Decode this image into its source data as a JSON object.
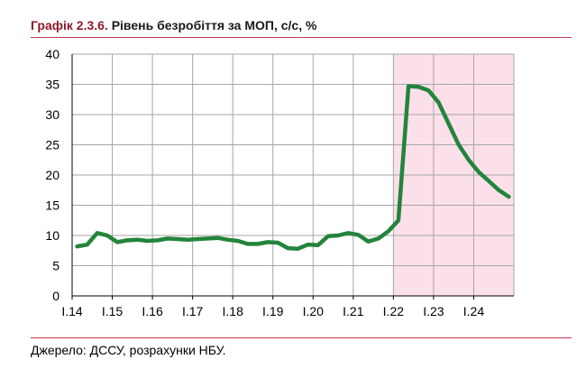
{
  "title": {
    "lead": "Графік 2.3.6.",
    "rest": "Рівень безробіття за МОП, с/с, %"
  },
  "source": "Джерело: ДССУ, розрахунки НБУ.",
  "colors": {
    "line": "#23843b",
    "shade": "#fbe0ea",
    "title_accent": "#8b1a2b",
    "rule": "#c0384f",
    "grid": "#a6a6a6"
  },
  "chart_data": {
    "type": "line",
    "title": "Рівень безробіття за МОП, с/с, %",
    "categories": [
      "I.14",
      "I.15",
      "I.16",
      "I.17",
      "I.18",
      "I.19",
      "I.20",
      "I.21",
      "I.22",
      "I.23",
      "I.24"
    ],
    "y_ticks": [
      0,
      5,
      10,
      15,
      20,
      25,
      30,
      35,
      40
    ],
    "ylim": [
      0,
      40
    ],
    "grid": true,
    "shaded_from": "I.22",
    "series": [
      {
        "x": [
          "I.14",
          "II.14",
          "III.14",
          "IV.14",
          "I.15",
          "II.15",
          "III.15",
          "IV.15",
          "I.16",
          "II.16",
          "III.16",
          "IV.16",
          "I.17",
          "II.17",
          "III.17",
          "IV.17",
          "I.18",
          "II.18",
          "III.18",
          "IV.18",
          "I.19",
          "II.19",
          "III.19",
          "IV.19",
          "I.20",
          "II.20",
          "III.20",
          "IV.20",
          "I.21",
          "II.21",
          "III.21",
          "IV.21",
          "I.22",
          "II.22",
          "III.22",
          "IV.22",
          "I.23",
          "II.23",
          "III.23",
          "IV.23",
          "I.24",
          "II.24",
          "III.24",
          "IV.24"
        ],
        "values": [
          8.2,
          8.5,
          10.4,
          10.0,
          8.9,
          9.2,
          9.3,
          9.1,
          9.2,
          9.5,
          9.4,
          9.3,
          9.4,
          9.5,
          9.6,
          9.3,
          9.1,
          8.6,
          8.6,
          8.9,
          8.8,
          7.9,
          7.8,
          8.5,
          8.4,
          9.9,
          10.0,
          10.4,
          10.1,
          9.0,
          9.5,
          10.7,
          12.5,
          34.7,
          34.6,
          34.0,
          32.0,
          28.5,
          25.0,
          22.5,
          20.5,
          19.0,
          17.5,
          16.4
        ]
      }
    ]
  }
}
